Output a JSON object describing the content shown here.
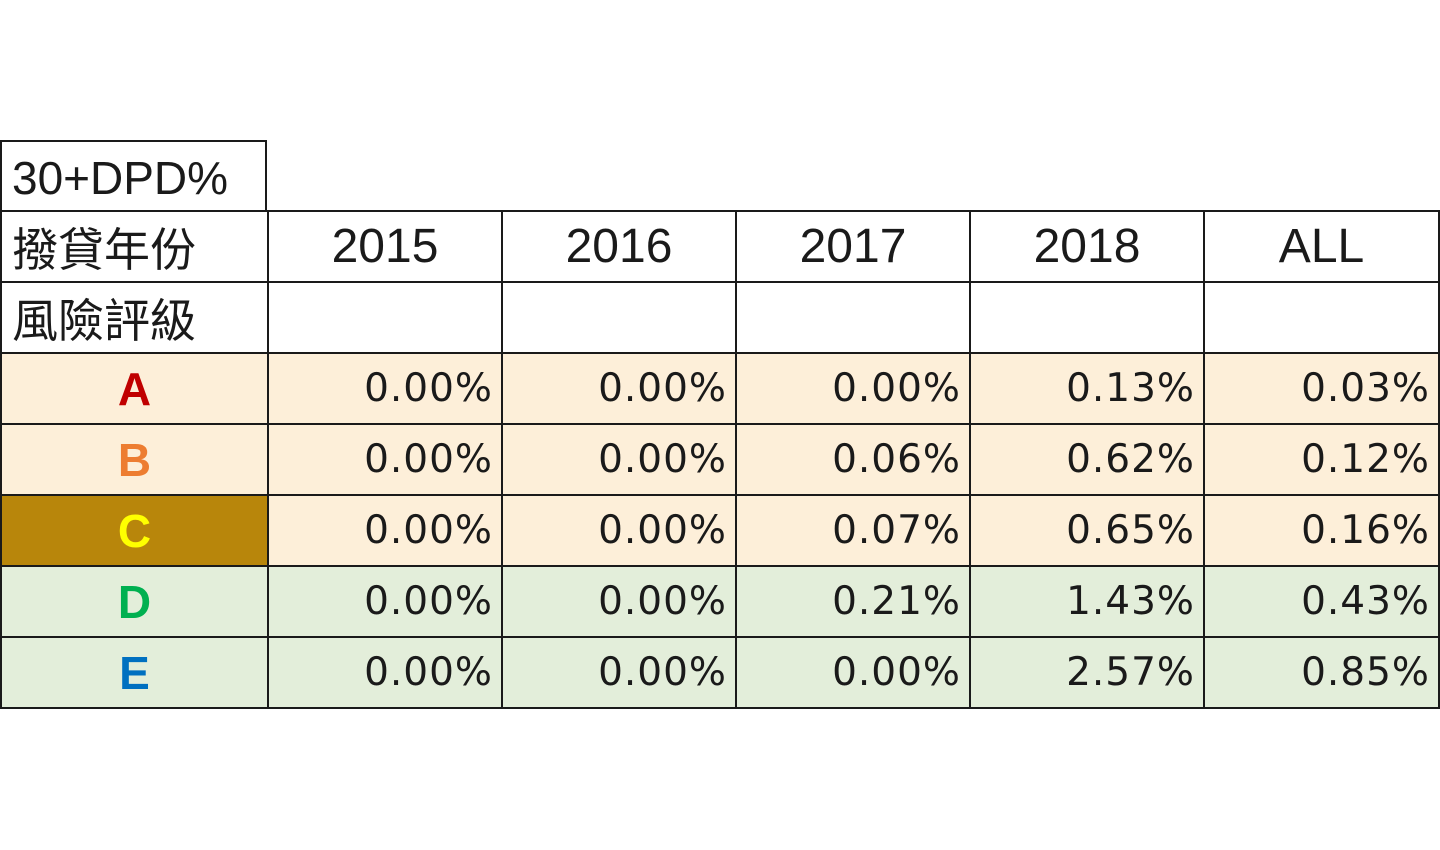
{
  "title": "30+DPD%",
  "header": {
    "year_label": "撥貸年份",
    "grade_label": "風險評級",
    "columns": [
      "2015",
      "2016",
      "2017",
      "2018",
      "ALL"
    ]
  },
  "rows": [
    {
      "grade": "A",
      "grade_color": "#c00000",
      "grade_bg": "#fdefd9",
      "row_bg": "#fdefd9",
      "values": [
        "0.00%",
        "0.00%",
        "0.00%",
        "0.13%",
        "0.03%"
      ]
    },
    {
      "grade": "B",
      "grade_color": "#ed7d31",
      "grade_bg": "#fdefd9",
      "row_bg": "#fdefd9",
      "values": [
        "0.00%",
        "0.00%",
        "0.06%",
        "0.62%",
        "0.12%"
      ]
    },
    {
      "grade": "C",
      "grade_color": "#ffff00",
      "grade_bg": "#b8860b",
      "row_bg": "#fdefd9",
      "values": [
        "0.00%",
        "0.00%",
        "0.07%",
        "0.65%",
        "0.16%"
      ]
    },
    {
      "grade": "D",
      "grade_color": "#00b050",
      "grade_bg": "#e3eeda",
      "row_bg": "#e3eeda",
      "values": [
        "0.00%",
        "0.00%",
        "0.21%",
        "1.43%",
        "0.43%"
      ]
    },
    {
      "grade": "E",
      "grade_color": "#0070c0",
      "grade_bg": "#e3eeda",
      "row_bg": "#e3eeda",
      "values": [
        "0.00%",
        "0.00%",
        "0.00%",
        "2.57%",
        "0.85%"
      ]
    }
  ]
}
